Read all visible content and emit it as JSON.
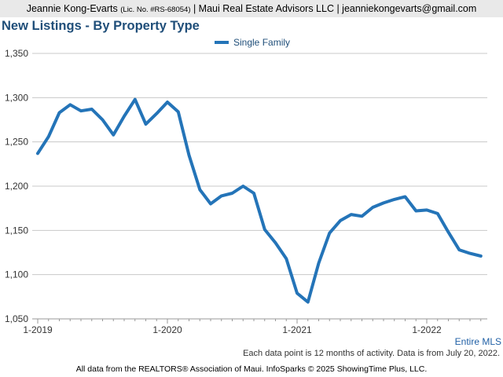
{
  "header": {
    "agent_name": "Jeannie Kong-Evarts",
    "license": "(Lic. No. #RS-68054)",
    "rest": " | Maui Real Estate Advisors LLC | jeanniekongevarts@gmail.com"
  },
  "title": "New Listings - By Property Type",
  "market_label": "Entire MLS",
  "footnote": "Each data point is 12 months of activity. Data is from July 20, 2022.",
  "source": "All data from the REALTORS® Association of Maui. InfoSparks © 2025 ShowingTime Plus, LLC.",
  "colors": {
    "series": "#2474b8",
    "title": "#1f4e79",
    "grid": "#c8c8c8"
  },
  "chart_data": {
    "type": "line",
    "title": "New Listings - By Property Type",
    "x_tick_labels": [
      "1-2019",
      "1-2020",
      "1-2021",
      "1-2022"
    ],
    "y_tick_labels": [
      "1,050",
      "1,100",
      "1,150",
      "1,200",
      "1,250",
      "1,300",
      "1,350"
    ],
    "ylim": [
      1050,
      1350
    ],
    "y_ticks": [
      1050,
      1100,
      1150,
      1200,
      1250,
      1300,
      1350
    ],
    "grid": "horizontal",
    "legend_position": "top-center",
    "x": [
      "2019-01",
      "2019-02",
      "2019-03",
      "2019-04",
      "2019-05",
      "2019-06",
      "2019-07",
      "2019-08",
      "2019-09",
      "2019-10",
      "2019-11",
      "2019-12",
      "2020-01",
      "2020-02",
      "2020-03",
      "2020-04",
      "2020-05",
      "2020-06",
      "2020-07",
      "2020-08",
      "2020-09",
      "2020-10",
      "2020-11",
      "2020-12",
      "2021-01",
      "2021-02",
      "2021-03",
      "2021-04",
      "2021-05",
      "2021-06",
      "2021-07",
      "2021-08",
      "2021-09",
      "2021-10",
      "2021-11",
      "2021-12",
      "2022-01",
      "2022-02",
      "2022-03",
      "2022-04",
      "2022-05",
      "2022-06"
    ],
    "series": [
      {
        "name": "Single Family",
        "values": [
          1237,
          1256,
          1283,
          1292,
          1285,
          1287,
          1275,
          1258,
          1279,
          1298,
          1270,
          1282,
          1295,
          1284,
          1235,
          1196,
          1180,
          1189,
          1192,
          1200,
          1192,
          1151,
          1136,
          1118,
          1079,
          1069,
          1113,
          1147,
          1161,
          1168,
          1166,
          1176,
          1181,
          1185,
          1188,
          1172,
          1173,
          1169,
          1148,
          1128,
          1124,
          1121
        ]
      }
    ]
  }
}
